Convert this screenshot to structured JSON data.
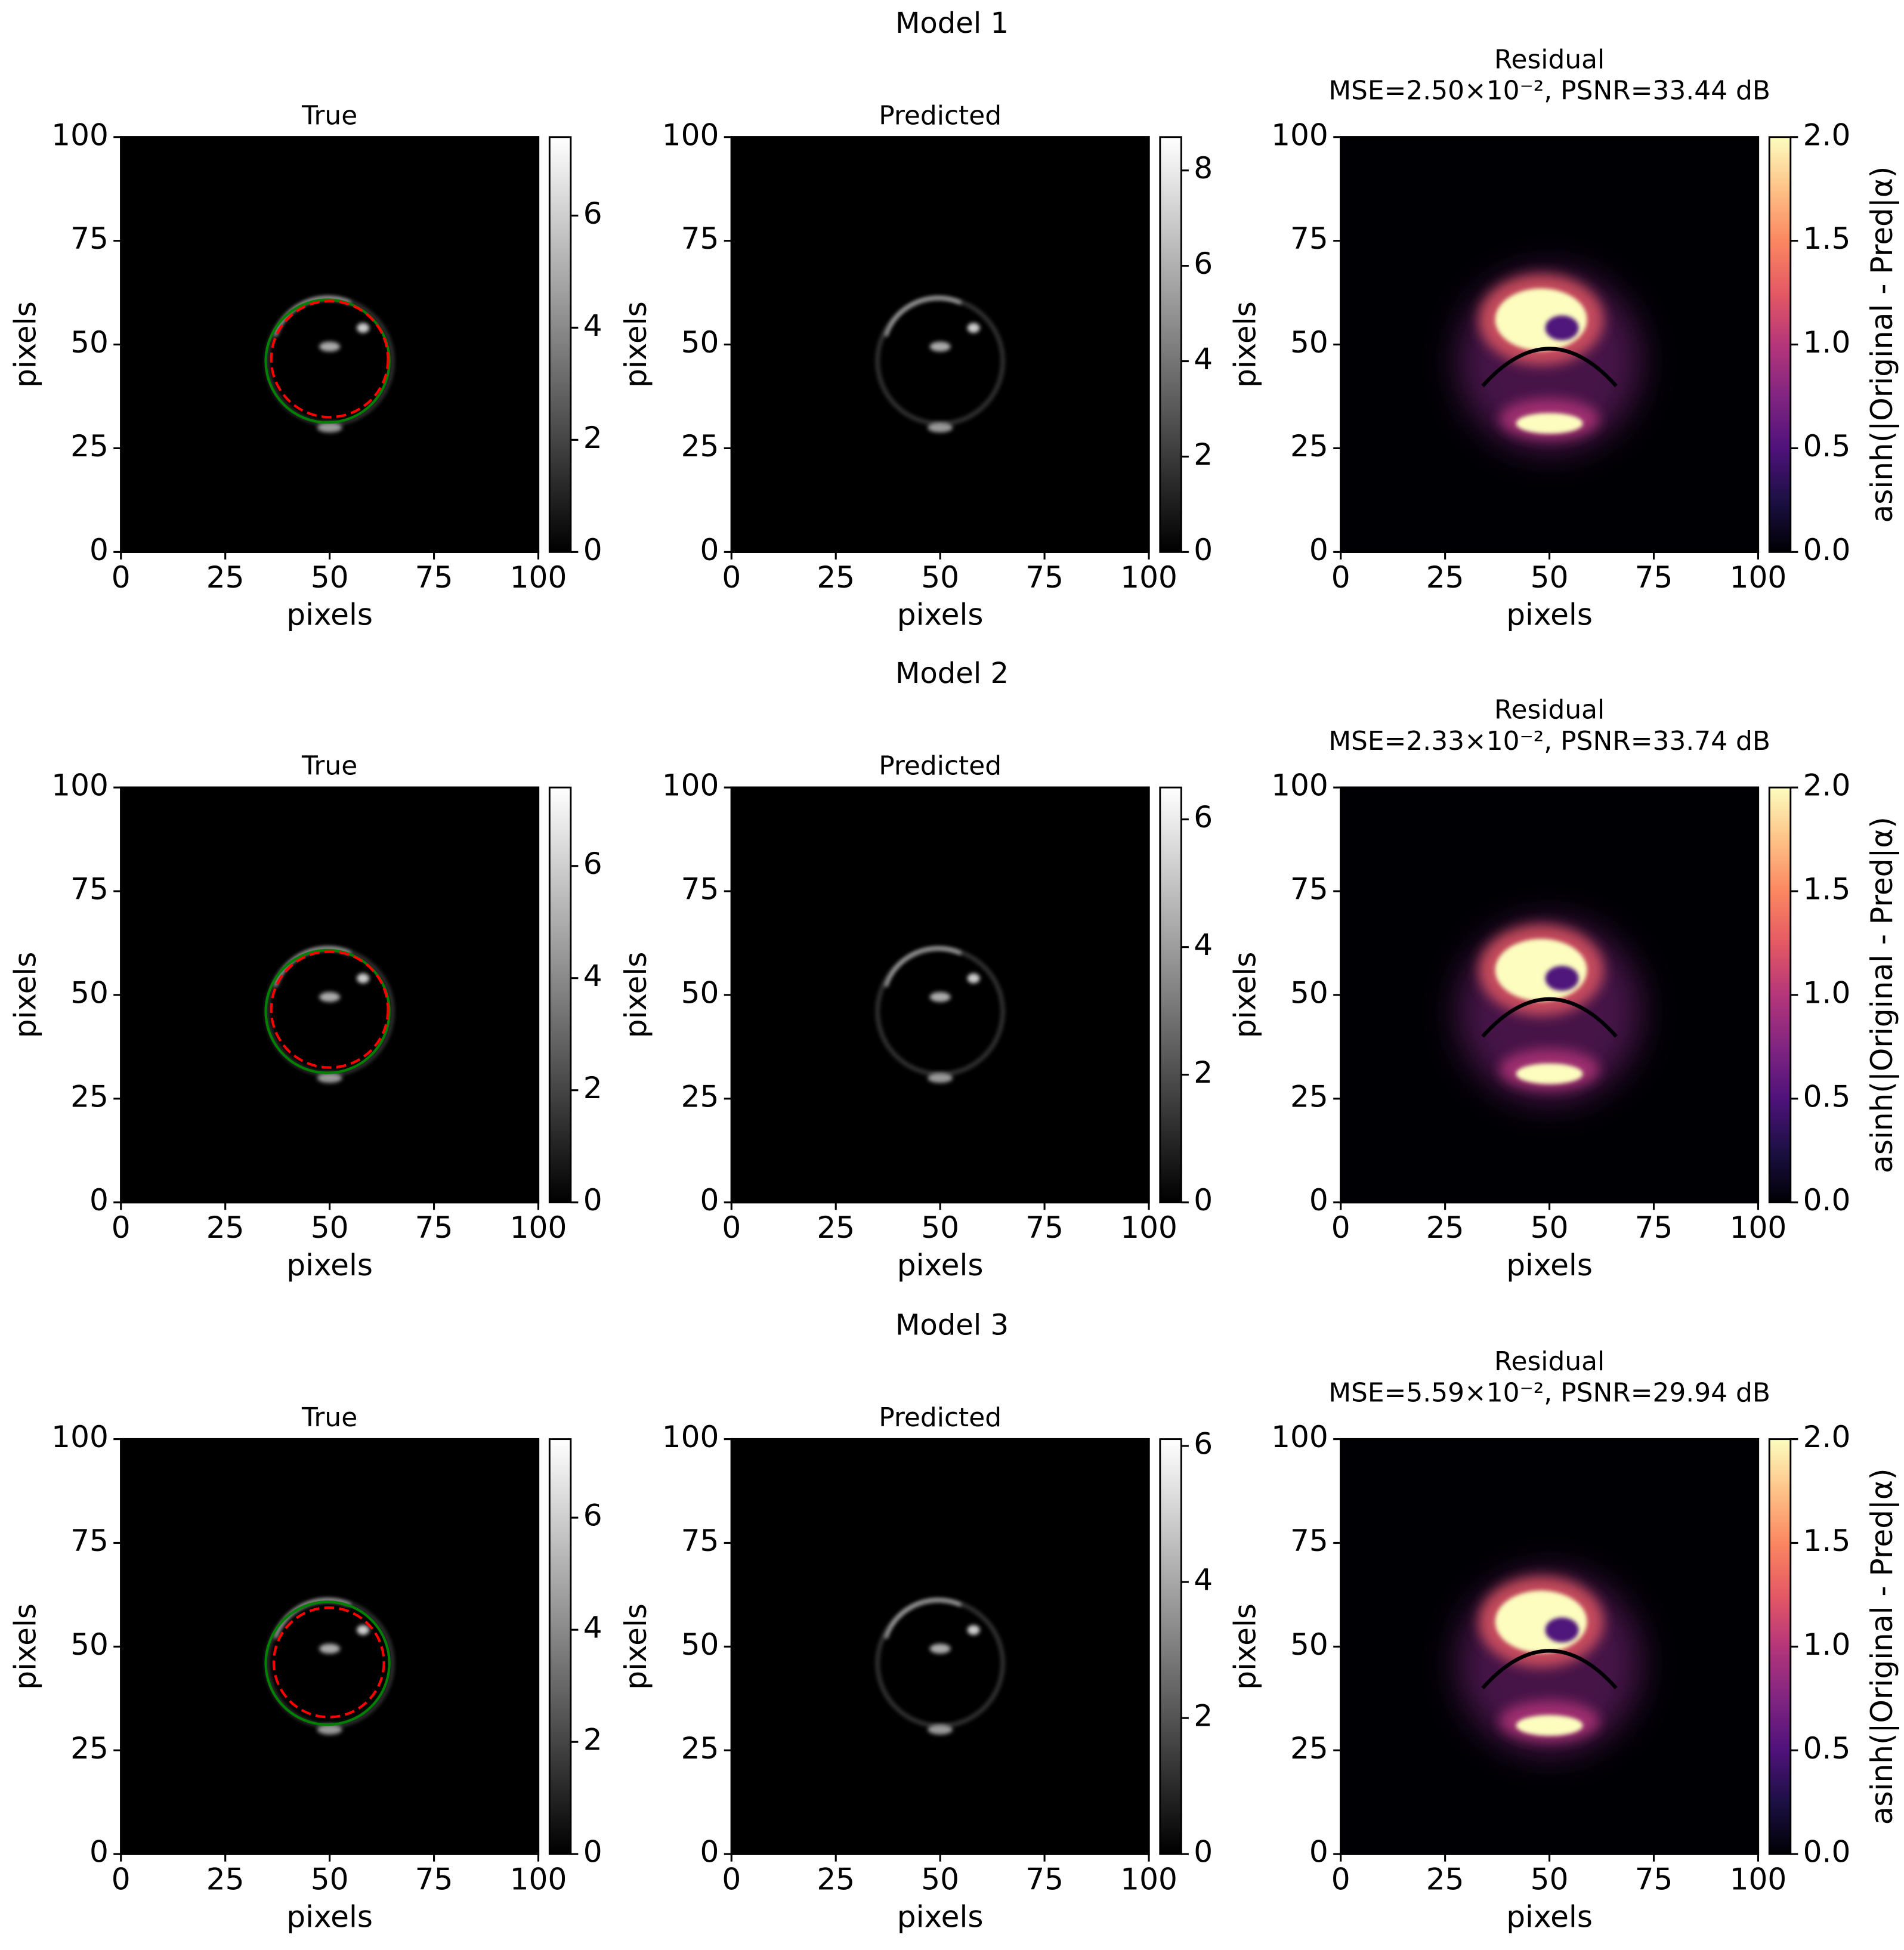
{
  "row_titles": [
    "Model 1",
    "Model 2",
    "Model 3"
  ],
  "chart_data": [
    {
      "type": "image",
      "title": "True",
      "xlabel": "pixels",
      "ylabel": "pixels",
      "xlim": [
        0,
        100
      ],
      "ylim": [
        0,
        100
      ],
      "xticks": [
        0,
        25,
        50,
        75,
        100
      ],
      "yticks": [
        0,
        25,
        50,
        75,
        100
      ],
      "colormap": "gray",
      "colorbar": {
        "lim": [
          0,
          7.4
        ],
        "ticks": [
          0,
          2,
          4,
          6
        ]
      },
      "circles": [
        {
          "color": "green",
          "style": "solid",
          "center": [
            49.5,
            46
          ],
          "radius": 14.8
        },
        {
          "color": "red",
          "style": "dashed",
          "center": [
            50,
            46.5
          ],
          "radius": 14
        }
      ]
    },
    {
      "type": "image",
      "title": "Predicted",
      "xlabel": "pixels",
      "ylabel": "pixels",
      "xlim": [
        0,
        100
      ],
      "ylim": [
        0,
        100
      ],
      "xticks": [
        0,
        25,
        50,
        75,
        100
      ],
      "yticks": [
        0,
        25,
        50,
        75,
        100
      ],
      "colormap": "gray",
      "colorbar": {
        "lim": [
          0,
          8.7
        ],
        "ticks": [
          0,
          2,
          4,
          6,
          8
        ]
      }
    },
    {
      "type": "image",
      "title": "Residual",
      "subtitle": "MSE=2.50×10⁻², PSNR=33.44 dB",
      "xlabel": "pixels",
      "ylabel": "pixels",
      "xlim": [
        0,
        100
      ],
      "ylim": [
        0,
        100
      ],
      "xticks": [
        0,
        25,
        50,
        75,
        100
      ],
      "yticks": [
        0,
        25,
        50,
        75,
        100
      ],
      "colormap": "magma",
      "colorbar": {
        "lim": [
          0,
          2
        ],
        "ticks": [
          {
            "value": 0,
            "label": "0.0"
          },
          0.5,
          {
            "value": 1,
            "label": "1.0"
          },
          1.5,
          {
            "value": 2,
            "label": "2.0"
          }
        ],
        "label": "asinh(|Original - Pred|α)"
      }
    },
    {
      "type": "image",
      "title": "True",
      "xlabel": "pixels",
      "ylabel": "pixels",
      "xlim": [
        0,
        100
      ],
      "ylim": [
        0,
        100
      ],
      "xticks": [
        0,
        25,
        50,
        75,
        100
      ],
      "yticks": [
        0,
        25,
        50,
        75,
        100
      ],
      "colormap": "gray",
      "colorbar": {
        "lim": [
          0,
          7.4
        ],
        "ticks": [
          0,
          2,
          4,
          6
        ]
      },
      "circles": [
        {
          "color": "green",
          "style": "solid",
          "center": [
            49.5,
            46
          ],
          "radius": 14.8
        },
        {
          "color": "red",
          "style": "dashed",
          "center": [
            50,
            46.5
          ],
          "radius": 14
        }
      ]
    },
    {
      "type": "image",
      "title": "Predicted",
      "xlabel": "pixels",
      "ylabel": "pixels",
      "xlim": [
        0,
        100
      ],
      "ylim": [
        0,
        100
      ],
      "xticks": [
        0,
        25,
        50,
        75,
        100
      ],
      "yticks": [
        0,
        25,
        50,
        75,
        100
      ],
      "colormap": "gray",
      "colorbar": {
        "lim": [
          0,
          6.5
        ],
        "ticks": [
          0,
          2,
          4,
          6
        ]
      }
    },
    {
      "type": "image",
      "title": "Residual",
      "subtitle": "MSE=2.33×10⁻², PSNR=33.74 dB",
      "xlabel": "pixels",
      "ylabel": "pixels",
      "xlim": [
        0,
        100
      ],
      "ylim": [
        0,
        100
      ],
      "xticks": [
        0,
        25,
        50,
        75,
        100
      ],
      "yticks": [
        0,
        25,
        50,
        75,
        100
      ],
      "colormap": "magma",
      "colorbar": {
        "lim": [
          0,
          2
        ],
        "ticks": [
          {
            "value": 0,
            "label": "0.0"
          },
          0.5,
          {
            "value": 1,
            "label": "1.0"
          },
          1.5,
          {
            "value": 2,
            "label": "2.0"
          }
        ],
        "label": "asinh(|Original - Pred|α)"
      }
    },
    {
      "type": "image",
      "title": "True",
      "xlabel": "pixels",
      "ylabel": "pixels",
      "xlim": [
        0,
        100
      ],
      "ylim": [
        0,
        100
      ],
      "xticks": [
        0,
        25,
        50,
        75,
        100
      ],
      "yticks": [
        0,
        25,
        50,
        75,
        100
      ],
      "colormap": "gray",
      "colorbar": {
        "lim": [
          0,
          7.4
        ],
        "ticks": [
          0,
          2,
          4,
          6
        ]
      },
      "circles": [
        {
          "color": "green",
          "style": "solid",
          "center": [
            49.5,
            46
          ],
          "radius": 14.8
        },
        {
          "color": "red",
          "style": "dashed",
          "center": [
            49.8,
            46.2
          ],
          "radius": 13.2
        }
      ]
    },
    {
      "type": "image",
      "title": "Predicted",
      "xlabel": "pixels",
      "ylabel": "pixels",
      "xlim": [
        0,
        100
      ],
      "ylim": [
        0,
        100
      ],
      "xticks": [
        0,
        25,
        50,
        75,
        100
      ],
      "yticks": [
        0,
        25,
        50,
        75,
        100
      ],
      "colormap": "gray",
      "colorbar": {
        "lim": [
          0,
          6.1
        ],
        "ticks": [
          0,
          2,
          4,
          6
        ]
      }
    },
    {
      "type": "image",
      "title": "Residual",
      "subtitle": "MSE=5.59×10⁻², PSNR=29.94 dB",
      "xlabel": "pixels",
      "ylabel": "pixels",
      "xlim": [
        0,
        100
      ],
      "ylim": [
        0,
        100
      ],
      "xticks": [
        0,
        25,
        50,
        75,
        100
      ],
      "yticks": [
        0,
        25,
        50,
        75,
        100
      ],
      "colormap": "magma",
      "colorbar": {
        "lim": [
          0,
          2
        ],
        "ticks": [
          {
            "value": 0,
            "label": "0.0"
          },
          0.5,
          {
            "value": 1,
            "label": "1.0"
          },
          1.5,
          {
            "value": 2,
            "label": "2.0"
          }
        ],
        "label": "asinh(|Original - Pred|α)"
      }
    }
  ]
}
